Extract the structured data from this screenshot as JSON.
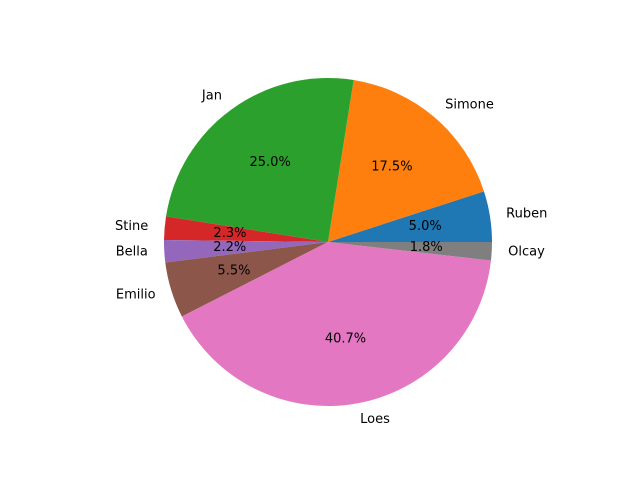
{
  "chart_data": {
    "type": "pie",
    "title": "",
    "start_angle_deg": 0,
    "direction": "counterclockwise",
    "slices": [
      {
        "label": "Ruben",
        "value": 5.0,
        "pct_label": "5.0%",
        "color": "#1f77b4"
      },
      {
        "label": "Simone",
        "value": 17.5,
        "pct_label": "17.5%",
        "color": "#ff7f0e"
      },
      {
        "label": "Jan",
        "value": 25.0,
        "pct_label": "25.0%",
        "color": "#2ca02c"
      },
      {
        "label": "Stine",
        "value": 2.3,
        "pct_label": "2.3%",
        "color": "#d62728"
      },
      {
        "label": "Bella",
        "value": 2.2,
        "pct_label": "2.2%",
        "color": "#9467bd"
      },
      {
        "label": "Emilio",
        "value": 5.5,
        "pct_label": "5.5%",
        "color": "#8c564b"
      },
      {
        "label": "Loes",
        "value": 40.7,
        "pct_label": "40.7%",
        "color": "#e377c2"
      },
      {
        "label": "Olcay",
        "value": 1.8,
        "pct_label": "1.8%",
        "color": "#7f7f7f"
      }
    ]
  }
}
